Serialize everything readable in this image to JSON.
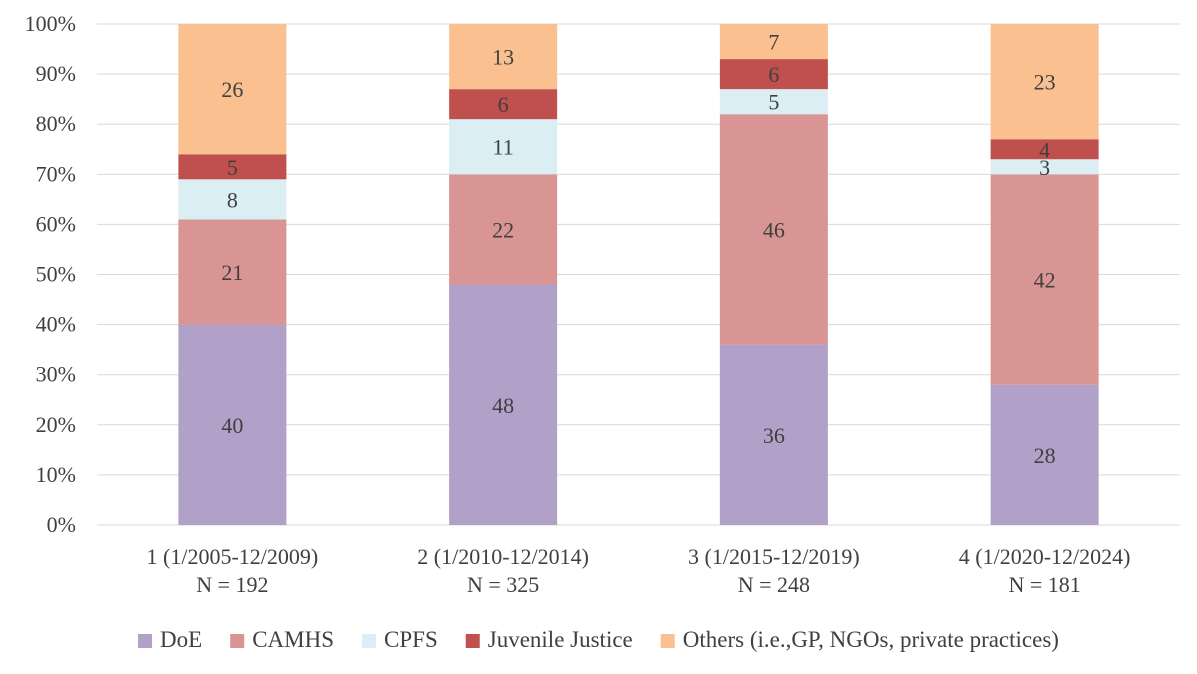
{
  "chart_data": {
    "type": "bar",
    "stacked": true,
    "categories": [
      [
        "1 (1/2005-12/2009)",
        "N = 192"
      ],
      [
        "2 (1/2010-12/2014)",
        "N = 325"
      ],
      [
        "3 (1/2015-12/2019)",
        "N = 248"
      ],
      [
        "4 (1/2020-12/2024)",
        "N = 181"
      ]
    ],
    "series": [
      {
        "name": "DoE",
        "color": "#b1a0c7",
        "values": [
          40,
          48,
          36,
          28
        ]
      },
      {
        "name": "CAMHS",
        "color": "#d99594",
        "values": [
          21,
          22,
          46,
          42
        ]
      },
      {
        "name": "CPFS",
        "color": "#daeef3",
        "values": [
          8,
          11,
          5,
          3
        ]
      },
      {
        "name": "Juvenile Justice",
        "color": "#c0504d",
        "values": [
          5,
          6,
          6,
          4
        ]
      },
      {
        "name": "Others (i.e.,GP, NGOs, private practices)",
        "color": "#fac090",
        "values": [
          26,
          13,
          7,
          23
        ]
      }
    ],
    "yticks": [
      "0%",
      "10%",
      "20%",
      "30%",
      "40%",
      "50%",
      "60%",
      "70%",
      "80%",
      "90%",
      "100%"
    ],
    "ylim": [
      0,
      100
    ],
    "grid": true,
    "legend_position": "bottom"
  }
}
